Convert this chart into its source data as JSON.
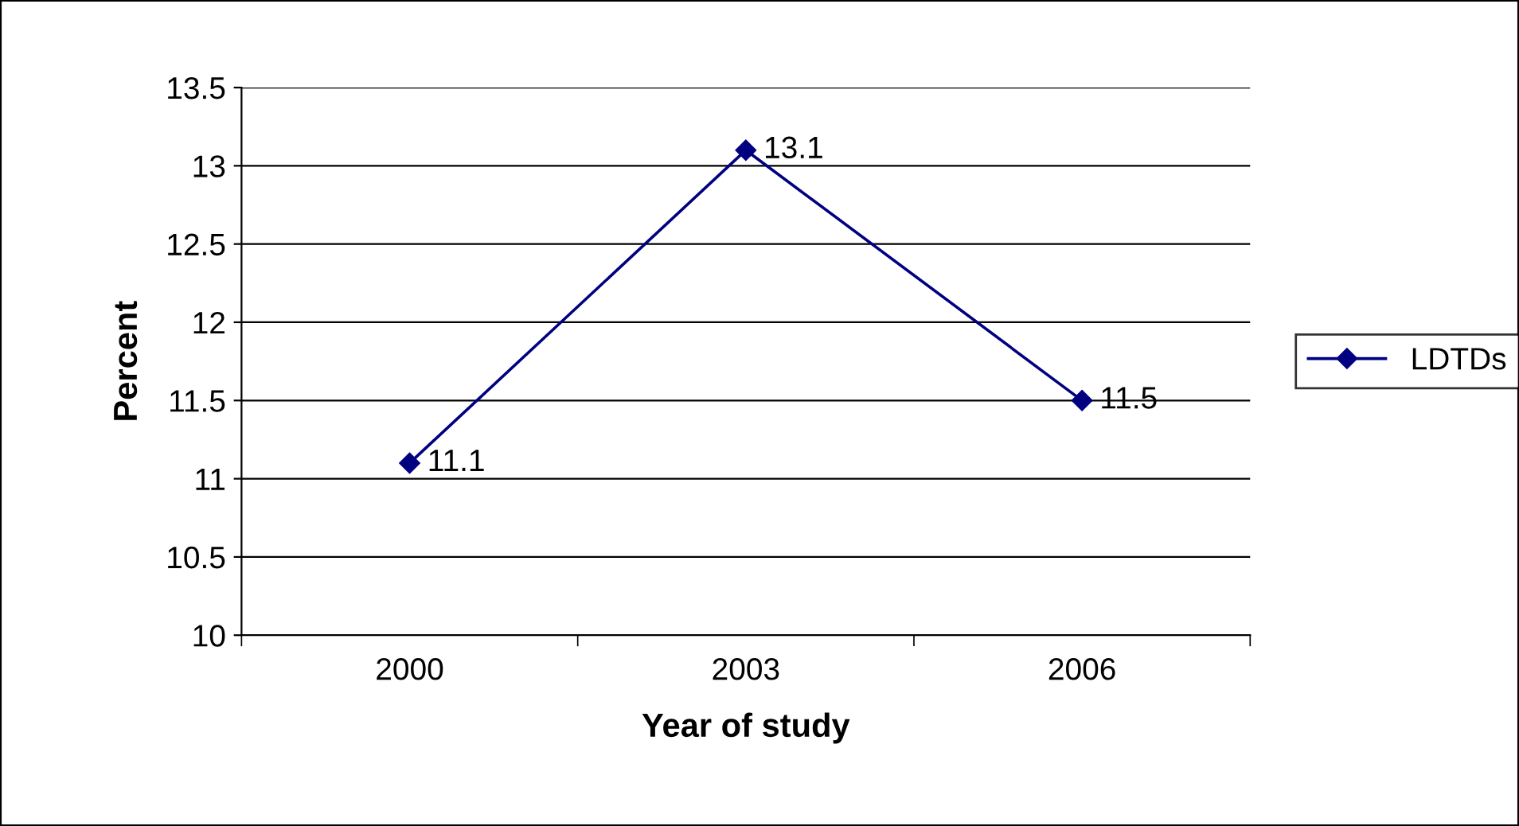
{
  "chart_data": {
    "type": "line",
    "xlabel": "Year of study",
    "ylabel": "Percent",
    "categories": [
      "2000",
      "2003",
      "2006"
    ],
    "series": [
      {
        "name": "LDTDs",
        "color": "#000080",
        "values": [
          11.1,
          13.1,
          11.5
        ]
      }
    ],
    "ylim": [
      10,
      13.5
    ],
    "yticks": [
      10,
      10.5,
      11,
      11.5,
      12,
      12.5,
      13,
      13.5
    ],
    "grid": "y",
    "legend": "right",
    "marker": "diamond",
    "line_style": "solid",
    "data_labels": true
  }
}
